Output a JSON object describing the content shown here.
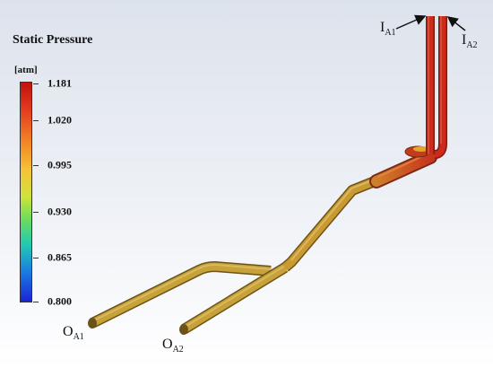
{
  "legend": {
    "title": "Static Pressure",
    "unit": "[atm]",
    "ticks": [
      "1.181",
      "1.020",
      "0.995",
      "0.930",
      "0.865",
      "0.800"
    ]
  },
  "labels": {
    "inlet_1": {
      "main": "I",
      "sub": "A1"
    },
    "inlet_2": {
      "main": "I",
      "sub": "A2"
    },
    "outlet_1": {
      "main": "O",
      "sub": "A1"
    },
    "outlet_2": {
      "main": "O",
      "sub": "A2"
    }
  },
  "colors": {
    "high_pressure": "#c8281c",
    "mid_pressure": "#c8952a",
    "background_top": "#dde3ec"
  }
}
